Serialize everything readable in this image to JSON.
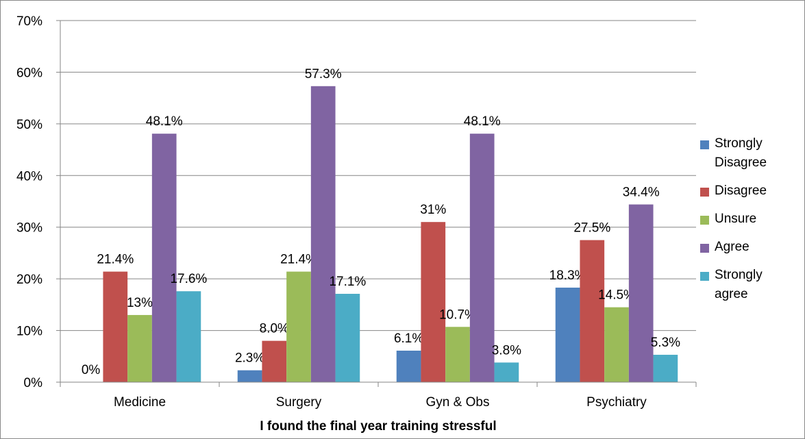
{
  "chart_data": {
    "type": "bar",
    "x_label": "I found the final year training stressful",
    "categories": [
      "Medicine",
      "Surgery",
      "Gyn & Obs",
      "Psychiatry"
    ],
    "series": [
      {
        "name": "Strongly Disagree",
        "color": "#4f81bd",
        "values": [
          0,
          2.3,
          6.1,
          18.3
        ],
        "value_labels": [
          "0%",
          "2.3%",
          "6.1%",
          "18.3%"
        ]
      },
      {
        "name": "Disagree",
        "color": "#c0504d",
        "values": [
          21.4,
          8.0,
          31,
          27.5
        ],
        "value_labels": [
          "21.4%",
          "8.0%",
          "31%",
          "27.5%"
        ]
      },
      {
        "name": "Unsure",
        "color": "#9bbb59",
        "values": [
          13,
          21.4,
          10.7,
          14.5
        ],
        "value_labels": [
          "13%",
          "21.4%",
          "10.7%",
          "14.5%"
        ]
      },
      {
        "name": "Agree",
        "color": "#8064a2",
        "values": [
          48.1,
          57.3,
          48.1,
          34.4
        ],
        "value_labels": [
          "48.1%",
          "57.3%",
          "48.1%",
          "34.4%"
        ]
      },
      {
        "name": "Strongly agree",
        "color": "#4bacc6",
        "values": [
          17.6,
          17.1,
          3.8,
          5.3
        ],
        "value_labels": [
          "17.6%",
          "17.1%",
          "3.8%",
          "5.3%"
        ]
      }
    ],
    "ylim": [
      0,
      70
    ],
    "yticks": [
      {
        "value": 0,
        "label": "0%"
      },
      {
        "value": 10,
        "label": "10%"
      },
      {
        "value": 20,
        "label": "20%"
      },
      {
        "value": 30,
        "label": "30%"
      },
      {
        "value": 40,
        "label": "40%"
      },
      {
        "value": 50,
        "label": "50%"
      },
      {
        "value": 60,
        "label": "60%"
      },
      {
        "value": 70,
        "label": "70%"
      }
    ],
    "grid": true,
    "legend": "right"
  }
}
